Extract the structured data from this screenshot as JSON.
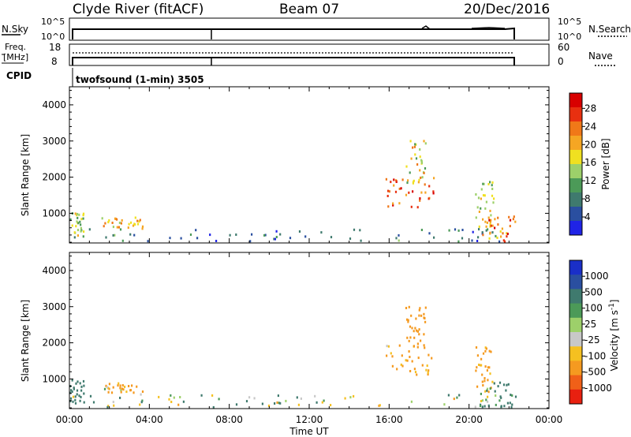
{
  "header": {
    "station": "Clyde River (fitACF)",
    "beam": "Beam 07",
    "date": "20/Dec/2016"
  },
  "top_panels": {
    "nsky": {
      "label": "N.Sky",
      "ticks": [
        "10^5",
        "10^0"
      ],
      "right_ticks": [
        "10^5",
        "10^0"
      ],
      "right_label": "N.Search"
    },
    "freq": {
      "label_line1": "Freq.",
      "label_line2": "[MHz]",
      "ticks": [
        "18",
        "8"
      ],
      "right_ticks": [
        "60",
        "0"
      ],
      "right_label": "Nave"
    },
    "cpid": {
      "label": "CPID",
      "program": "twofsound (1-min) 3505"
    }
  },
  "chart_data": [
    {
      "type": "heatmap",
      "name": "power",
      "ylabel": "Slant Range [km]",
      "ylim": [
        180,
        4500
      ],
      "y_ticks": [
        1000,
        2000,
        3000,
        4000
      ],
      "colorbar_label": "Power [dB]",
      "colorbar_ticks": [
        "4",
        "8",
        "12",
        "16",
        "20",
        "24",
        "28"
      ],
      "colorbar_colors": [
        "#1f23e6",
        "#2a4fa0",
        "#3f7a6e",
        "#4c9a58",
        "#9dd06a",
        "#f0e020",
        "#f5a623",
        "#f07818",
        "#e83010",
        "#d80000"
      ],
      "regions": [
        {
          "t": [
            0.0,
            0.7
          ],
          "r": [
            300,
            1000
          ],
          "value": 16
        },
        {
          "t": [
            1.5,
            3.7
          ],
          "r": [
            550,
            870
          ],
          "value": 20
        },
        {
          "t": [
            0.0,
            22.3
          ],
          "r": [
            200,
            550
          ],
          "value": 6
        },
        {
          "t": [
            15.8,
            18.2
          ],
          "r": [
            1100,
            2000
          ],
          "value": 26
        },
        {
          "t": [
            16.8,
            17.8
          ],
          "r": [
            1800,
            3000
          ],
          "value": 18
        },
        {
          "t": [
            20.3,
            21.2
          ],
          "r": [
            600,
            1900
          ],
          "value": 16
        },
        {
          "t": [
            20.5,
            22.3
          ],
          "r": [
            200,
            900
          ],
          "value": 24
        }
      ]
    },
    {
      "type": "heatmap",
      "name": "velocity",
      "ylabel": "Slant Range [km]",
      "ylim": [
        180,
        4500
      ],
      "y_ticks": [
        1000,
        2000,
        3000,
        4000
      ],
      "colorbar_label": "Velocity [m s^-1]",
      "colorbar_ticks": [
        "1000",
        "500",
        "100",
        "25",
        "-25",
        "-100",
        "-500",
        "-1000"
      ],
      "colorbar_colors": [
        "#1a2fc8",
        "#2a4fa0",
        "#3f7a6e",
        "#4c9a58",
        "#9dd06a",
        "#c8c8c8",
        "#f5c020",
        "#f59a20",
        "#f06018",
        "#e82010"
      ],
      "regions": [
        {
          "t": [
            0.0,
            0.7
          ],
          "r": [
            300,
            1000
          ],
          "value": 300
        },
        {
          "t": [
            1.5,
            3.7
          ],
          "r": [
            550,
            870
          ],
          "value": -150
        },
        {
          "t": [
            0.0,
            22.3
          ],
          "r": [
            200,
            550
          ],
          "value": 60
        },
        {
          "t": [
            15.8,
            18.2
          ],
          "r": [
            1100,
            2000
          ],
          "value": -200
        },
        {
          "t": [
            16.8,
            17.8
          ],
          "r": [
            1800,
            3000
          ],
          "value": -300
        },
        {
          "t": [
            20.3,
            21.2
          ],
          "r": [
            600,
            1900
          ],
          "value": -250
        },
        {
          "t": [
            20.5,
            22.3
          ],
          "r": [
            200,
            900
          ],
          "value": 200
        }
      ]
    }
  ],
  "x_axis": {
    "tick_labels": [
      "00:00",
      "04:00",
      "08:00",
      "12:00",
      "16:00",
      "20:00",
      "00:00"
    ],
    "label": "Time UT"
  }
}
